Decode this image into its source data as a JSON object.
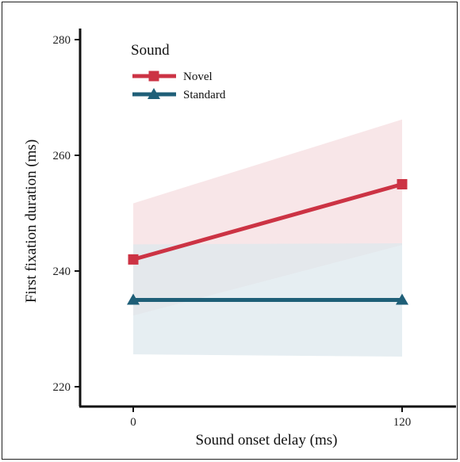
{
  "chart_data": {
    "type": "line",
    "xlabel": "Sound onset delay (ms)",
    "ylabel": "First fixation duration (ms)",
    "x": [
      0,
      120
    ],
    "x_tick_labels": [
      "0",
      "120"
    ],
    "y_ticks": [
      220,
      240,
      260,
      280
    ],
    "y_tick_labels": [
      "220",
      "240",
      "260",
      "280"
    ],
    "xlim": [
      -22,
      138
    ],
    "ylim": [
      218,
      285
    ],
    "legend": {
      "title": "Sound",
      "position": "top-left"
    },
    "series": [
      {
        "name": "Novel",
        "values": [
          242,
          255
        ],
        "ci_lower": [
          232.3,
          244.5
        ],
        "ci_upper": [
          251.7,
          266.2
        ],
        "color": "#cc3344",
        "band_color": "#f6dde0",
        "marker": "square"
      },
      {
        "name": "Standard",
        "values": [
          235,
          235
        ],
        "ci_lower": [
          225.6,
          225.2
        ],
        "ci_upper": [
          244.6,
          244.8
        ],
        "color": "#1f5f78",
        "band_color": "#dde8ed",
        "marker": "triangle"
      }
    ]
  }
}
